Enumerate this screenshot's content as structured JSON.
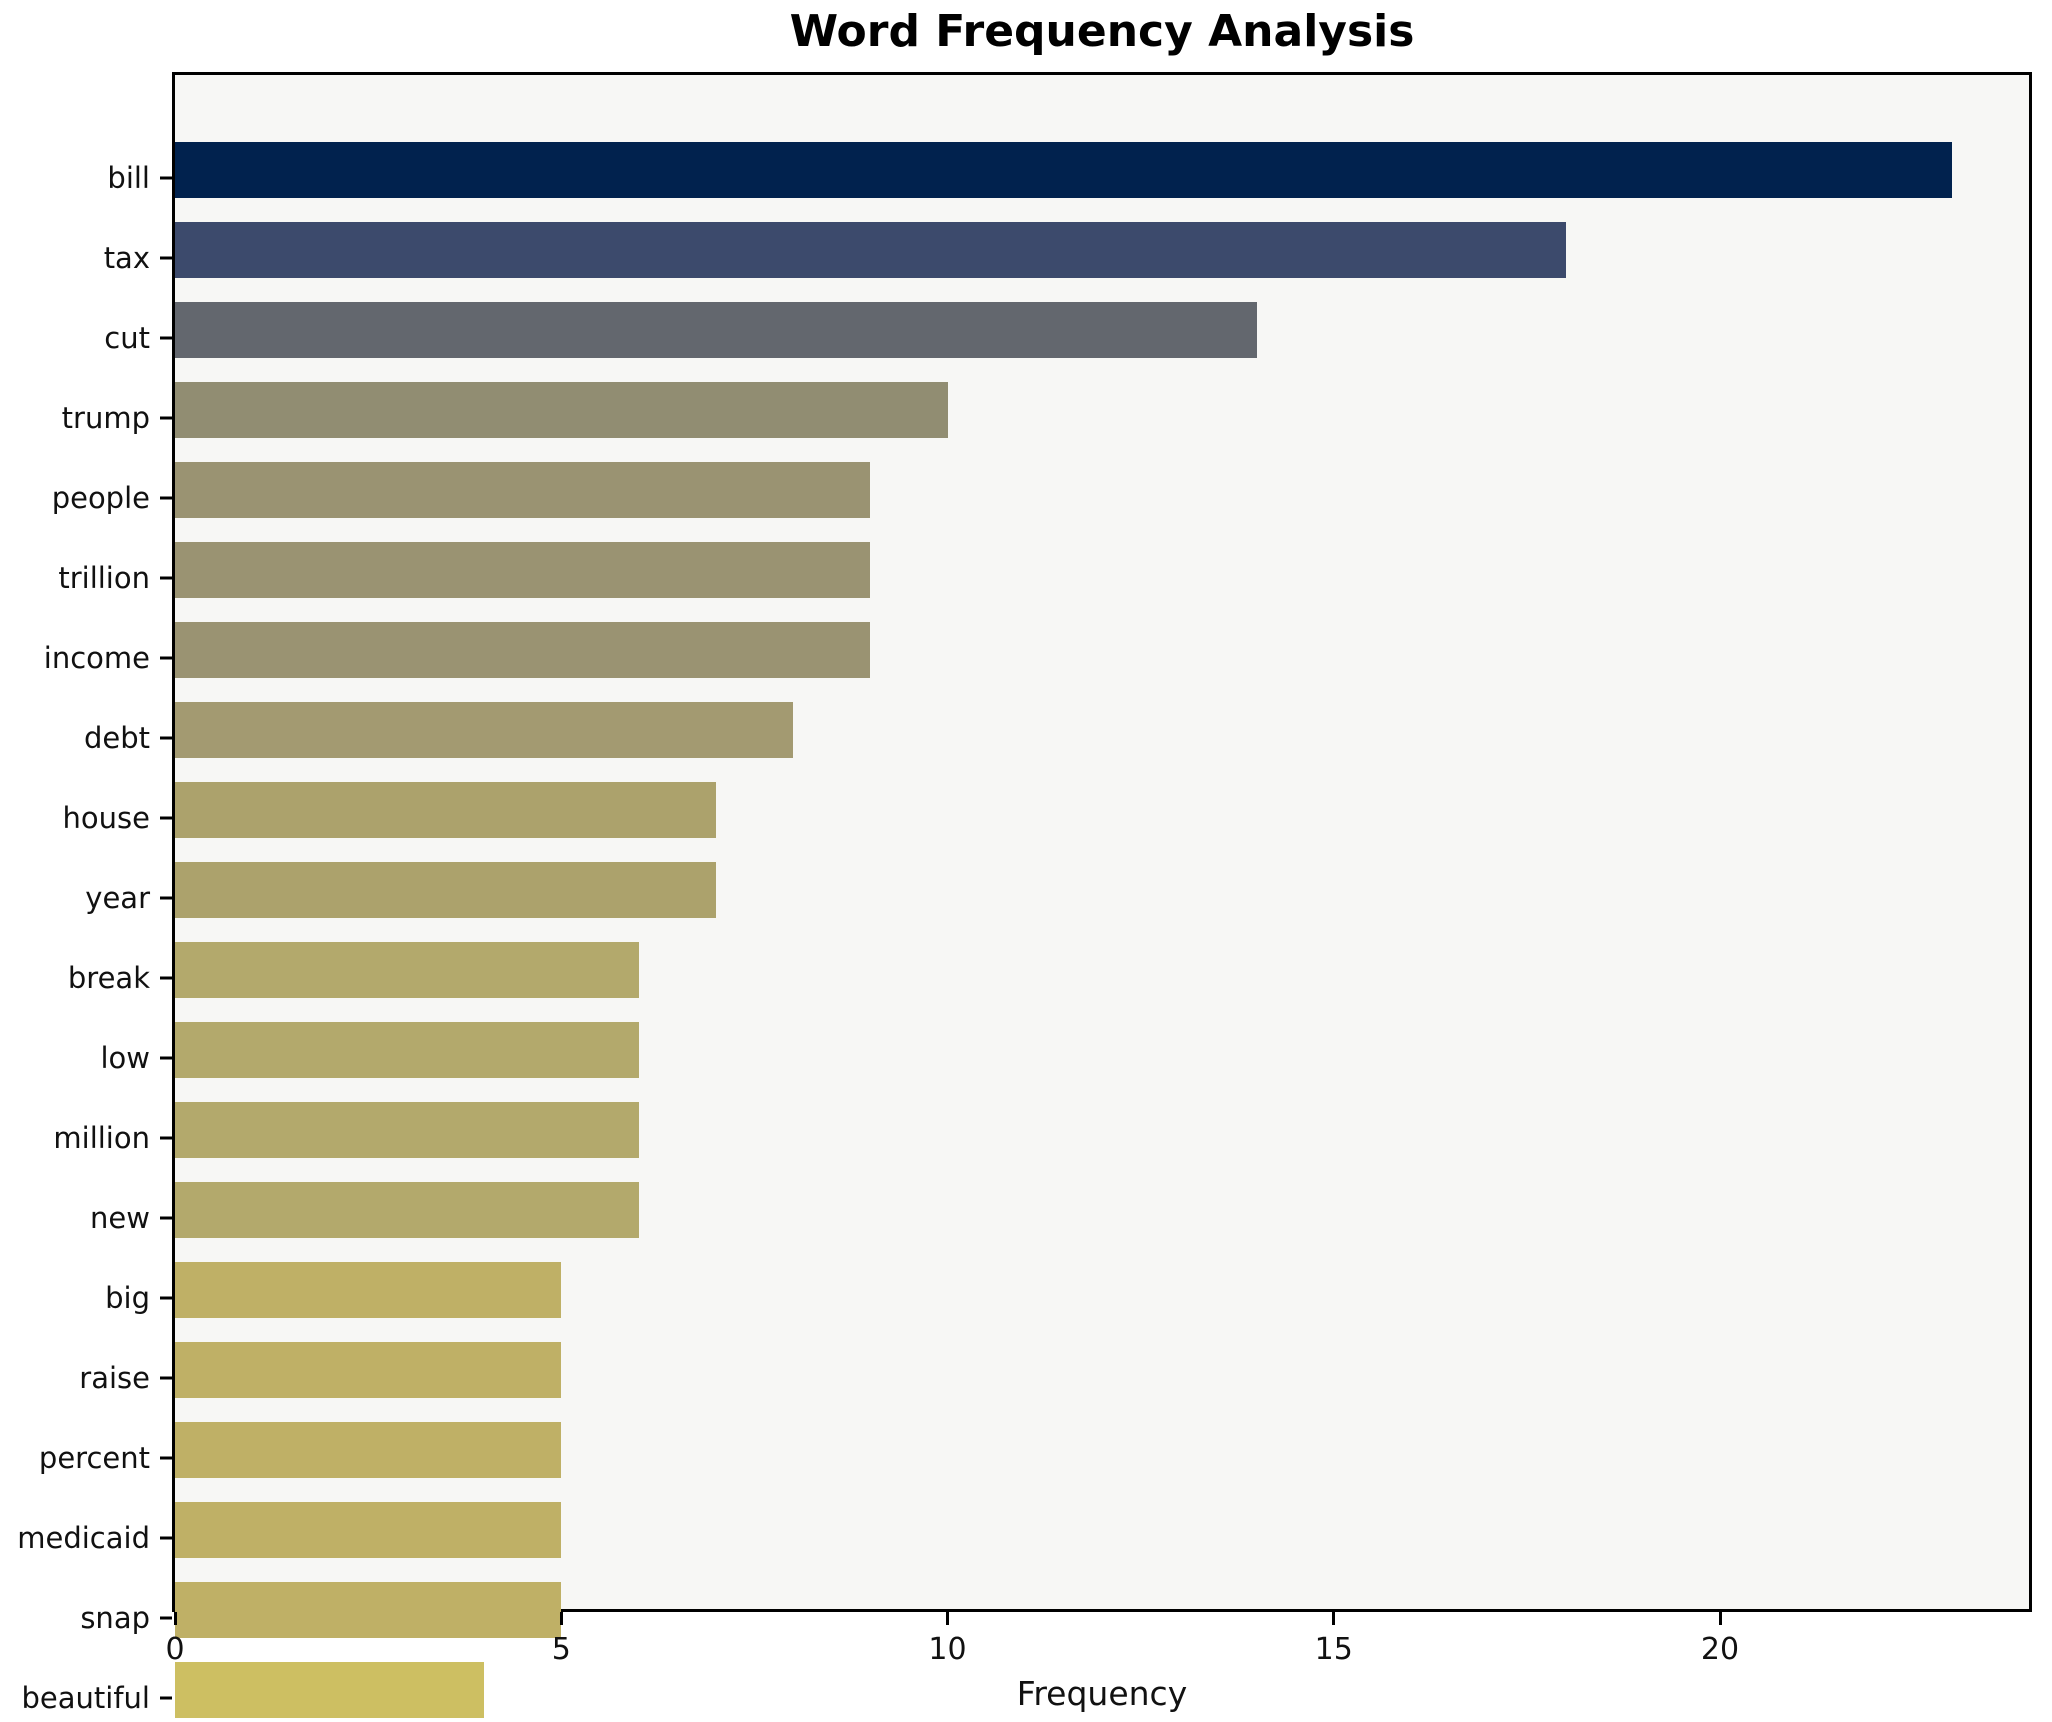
{
  "chart_data": {
    "type": "bar",
    "orientation": "horizontal",
    "title": "Word Frequency Analysis",
    "xlabel": "Frequency",
    "ylabel": "",
    "xlim": [
      0,
      24
    ],
    "xticks": [
      0,
      5,
      10,
      15,
      20
    ],
    "grid": false,
    "legend": "none",
    "colormap": "cividis",
    "plot_background": "#f7f7f5",
    "figure_background": "#ffffff",
    "spine_color": "#000000",
    "categories": [
      "bill",
      "tax",
      "cut",
      "trump",
      "people",
      "trillion",
      "income",
      "debt",
      "house",
      "year",
      "break",
      "low",
      "million",
      "new",
      "big",
      "raise",
      "percent",
      "medicaid",
      "snap",
      "beautiful"
    ],
    "values": [
      23,
      18,
      14,
      10,
      9,
      9,
      9,
      8,
      7,
      7,
      6,
      6,
      6,
      6,
      5,
      5,
      5,
      5,
      5,
      4
    ],
    "bar_colors": [
      "#01224e",
      "#3c4a6c",
      "#63676e",
      "#918d72",
      "#9a9372",
      "#9a9372",
      "#9a9372",
      "#a39a71",
      "#aca26c",
      "#aca26c",
      "#b3a96c",
      "#b3a96c",
      "#b3a96c",
      "#b3a96c",
      "#bfb066",
      "#bfb066",
      "#bfb066",
      "#bfb066",
      "#bfb066",
      "#cdbf62"
    ]
  }
}
